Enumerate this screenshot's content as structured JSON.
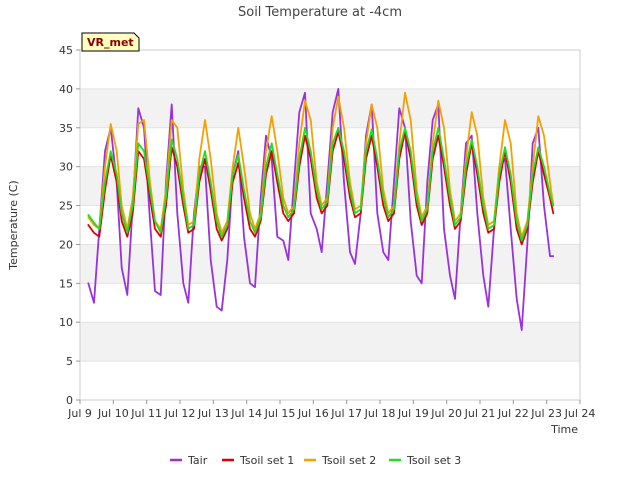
{
  "chart_data": {
    "type": "line",
    "title": "Soil Temperature at -4cm",
    "xlabel": "Time",
    "ylabel": "Temperature (C)",
    "xlim": [
      9,
      24
    ],
    "ylim": [
      0,
      45
    ],
    "xticks": [
      9,
      10,
      11,
      12,
      13,
      14,
      15,
      16,
      17,
      18,
      19,
      20,
      21,
      22,
      23,
      24
    ],
    "xtick_labels": [
      "Jul 9",
      "Jul 10",
      "Jul 11",
      "Jul 12",
      "Jul 13",
      "Jul 14",
      "Jul 15",
      "Jul 16",
      "Jul 17",
      "Jul 18",
      "Jul 19",
      "Jul 20",
      "Jul 21",
      "Jul 22",
      "Jul 23",
      "Jul 24"
    ],
    "yticks": [
      0,
      5,
      10,
      15,
      20,
      25,
      30,
      35,
      40,
      45
    ],
    "ytick_labels": [
      "0",
      "5",
      "10",
      "15",
      "20",
      "25",
      "30",
      "35",
      "40",
      "45"
    ],
    "grid": "horizontal alternating bands",
    "legend_position": "bottom-center",
    "station_label": "VR_met",
    "series": [
      {
        "name": "Tair",
        "color": "#9b30e0",
        "x": [
          9.25,
          9.42,
          9.58,
          9.75,
          9.92,
          10.1,
          10.25,
          10.42,
          10.58,
          10.75,
          10.92,
          11.1,
          11.25,
          11.42,
          11.58,
          11.75,
          11.92,
          12.1,
          12.25,
          12.42,
          12.58,
          12.75,
          12.92,
          13.1,
          13.25,
          13.42,
          13.58,
          13.75,
          13.92,
          14.1,
          14.25,
          14.42,
          14.58,
          14.75,
          14.92,
          15.1,
          15.25,
          15.42,
          15.58,
          15.75,
          15.92,
          16.1,
          16.25,
          16.42,
          16.58,
          16.75,
          16.92,
          17.1,
          17.25,
          17.42,
          17.58,
          17.75,
          17.92,
          18.1,
          18.25,
          18.42,
          18.58,
          18.75,
          18.92,
          19.1,
          19.25,
          19.42,
          19.58,
          19.75,
          19.92,
          20.1,
          20.25,
          20.42,
          20.58,
          20.75,
          20.92,
          21.1,
          21.25,
          21.42,
          21.58,
          21.75,
          21.92,
          22.1,
          22.25,
          22.42,
          22.58,
          22.75,
          22.92,
          23.1,
          23.2
        ],
        "y": [
          15,
          12.5,
          22,
          32,
          35,
          28,
          17,
          13.5,
          25,
          37.5,
          35,
          23,
          14,
          13.5,
          28,
          38,
          24,
          15,
          12.5,
          24,
          30,
          30,
          18,
          12,
          11.5,
          18,
          29,
          32,
          21,
          15,
          14.5,
          26,
          34,
          31,
          21,
          20.5,
          18,
          28,
          37,
          39.5,
          24,
          22,
          19,
          28,
          37,
          40,
          28,
          19,
          17.5,
          24,
          34,
          38,
          24,
          19,
          18,
          28,
          37.5,
          35,
          23,
          16,
          15,
          28,
          36,
          38,
          22,
          16,
          13,
          24,
          33,
          34,
          24,
          16,
          12,
          22,
          30,
          31,
          22,
          13,
          9,
          20,
          33,
          35,
          25,
          18.5,
          18.5
        ]
      },
      {
        "name": "Tsoil set 1",
        "color": "#dd0000",
        "x": [
          9.25,
          9.42,
          9.58,
          9.75,
          9.92,
          10.1,
          10.25,
          10.42,
          10.58,
          10.75,
          10.92,
          11.1,
          11.25,
          11.42,
          11.58,
          11.75,
          11.92,
          12.1,
          12.25,
          12.42,
          12.58,
          12.75,
          12.92,
          13.1,
          13.25,
          13.42,
          13.58,
          13.75,
          13.92,
          14.1,
          14.25,
          14.42,
          14.58,
          14.75,
          14.92,
          15.1,
          15.25,
          15.42,
          15.58,
          15.75,
          15.92,
          16.1,
          16.25,
          16.42,
          16.58,
          16.75,
          16.92,
          17.1,
          17.25,
          17.42,
          17.58,
          17.75,
          17.92,
          18.1,
          18.25,
          18.42,
          18.58,
          18.75,
          18.92,
          19.1,
          19.25,
          19.42,
          19.58,
          19.75,
          19.92,
          20.1,
          20.25,
          20.42,
          20.58,
          20.75,
          20.92,
          21.1,
          21.25,
          21.42,
          21.58,
          21.75,
          21.92,
          22.1,
          22.25,
          22.42,
          22.58,
          22.75,
          22.92,
          23.1,
          23.2
        ],
        "y": [
          22.5,
          21.5,
          21,
          27,
          31.5,
          28,
          23,
          21,
          24,
          32,
          31,
          26,
          22,
          21,
          25,
          32.5,
          30,
          25,
          21.5,
          22,
          28,
          31,
          27,
          22,
          20.5,
          22,
          28,
          30.5,
          26,
          22,
          21,
          23,
          29,
          32,
          28,
          24,
          23,
          24,
          30,
          34,
          31,
          26,
          24,
          25,
          32,
          34.5,
          31,
          26,
          23.5,
          24,
          31,
          34,
          30,
          25,
          23,
          24,
          31,
          34.5,
          31,
          25,
          22.5,
          24,
          31,
          34,
          30,
          25,
          22,
          23,
          29,
          33,
          29,
          24,
          21.5,
          22,
          28,
          32,
          28,
          22,
          20,
          22,
          28,
          32,
          29,
          26,
          24
        ]
      },
      {
        "name": "Tsoil set 2",
        "color": "#f5a000",
        "x": [
          9.25,
          9.42,
          9.58,
          9.75,
          9.92,
          10.1,
          10.25,
          10.42,
          10.58,
          10.75,
          10.92,
          11.1,
          11.25,
          11.42,
          11.58,
          11.75,
          11.92,
          12.1,
          12.25,
          12.42,
          12.58,
          12.75,
          12.92,
          13.1,
          13.25,
          13.42,
          13.58,
          13.75,
          13.92,
          14.1,
          14.25,
          14.42,
          14.58,
          14.75,
          14.92,
          15.1,
          15.25,
          15.42,
          15.58,
          15.75,
          15.92,
          16.1,
          16.25,
          16.42,
          16.58,
          16.75,
          16.92,
          17.1,
          17.25,
          17.42,
          17.58,
          17.75,
          17.92,
          18.1,
          18.25,
          18.42,
          18.58,
          18.75,
          18.92,
          19.1,
          19.25,
          19.42,
          19.58,
          19.75,
          19.92,
          20.1,
          20.25,
          20.42,
          20.58,
          20.75,
          20.92,
          21.1,
          21.25,
          21.42,
          21.58,
          21.75,
          21.92,
          22.1,
          22.25,
          22.42,
          22.58,
          22.75,
          22.92,
          23.1,
          23.2
        ],
        "y": [
          23.5,
          22.5,
          22,
          30,
          35.5,
          32,
          25,
          22,
          26,
          35.5,
          36,
          28,
          23,
          22,
          27,
          36,
          35,
          27,
          22.5,
          23,
          31,
          36,
          31,
          24,
          21.5,
          23,
          30,
          35,
          30,
          24,
          22,
          24,
          32,
          36.5,
          32,
          26,
          24,
          25,
          33,
          38.5,
          36,
          28,
          25,
          26,
          35,
          39,
          35,
          28,
          24.5,
          25,
          33,
          38,
          35,
          27,
          24,
          25,
          33,
          39.5,
          36,
          27,
          23.5,
          25,
          33,
          38.5,
          35,
          27,
          23,
          24,
          31,
          37,
          34,
          26,
          22.5,
          23,
          30,
          36,
          33,
          24,
          21,
          23,
          30,
          36.5,
          34,
          28,
          25
        ]
      },
      {
        "name": "Tsoil set 3",
        "color": "#22dd22",
        "x": [
          9.25,
          9.42,
          9.58,
          9.75,
          9.92,
          10.1,
          10.25,
          10.42,
          10.58,
          10.75,
          10.92,
          11.1,
          11.25,
          11.42,
          11.58,
          11.75,
          11.92,
          12.1,
          12.25,
          12.42,
          12.58,
          12.75,
          12.92,
          13.1,
          13.25,
          13.42,
          13.58,
          13.75,
          13.92,
          14.1,
          14.25,
          14.42,
          14.58,
          14.75,
          14.92,
          15.1,
          15.25,
          15.42,
          15.58,
          15.75,
          15.92,
          16.1,
          16.25,
          16.42,
          16.58,
          16.75,
          16.92,
          17.1,
          17.25,
          17.42,
          17.58,
          17.75,
          17.92,
          18.1,
          18.25,
          18.42,
          18.58,
          18.75,
          18.92,
          19.1,
          19.25,
          19.42,
          19.58,
          19.75,
          19.92,
          20.1,
          20.25,
          20.42,
          20.58,
          20.75,
          20.92,
          21.1,
          21.25,
          21.42,
          21.58,
          21.75,
          21.92,
          22.1,
          22.25,
          22.42,
          22.58,
          22.75,
          22.92,
          23.1,
          23.2
        ],
        "y": [
          23.8,
          22.8,
          22,
          28,
          32,
          29,
          24,
          21.5,
          25,
          33,
          32,
          27,
          23,
          21.5,
          26,
          33.5,
          31,
          26,
          22,
          22.5,
          29,
          32,
          28,
          23,
          21,
          22.5,
          29,
          31.5,
          27,
          23,
          21.5,
          23.5,
          30,
          33,
          29,
          25,
          23.5,
          24.5,
          31,
          35,
          32,
          27,
          24.5,
          25.5,
          33,
          35,
          32,
          27,
          24,
          24.5,
          32,
          34.8,
          31,
          26,
          23.5,
          24.5,
          32,
          35,
          32,
          26,
          23,
          24.5,
          32,
          35,
          31,
          26,
          22.5,
          23.5,
          30,
          33.5,
          30,
          25,
          22,
          22.5,
          29,
          32.5,
          29,
          23,
          20.5,
          22.5,
          29,
          32.5,
          30,
          26.5,
          25
        ]
      }
    ]
  }
}
